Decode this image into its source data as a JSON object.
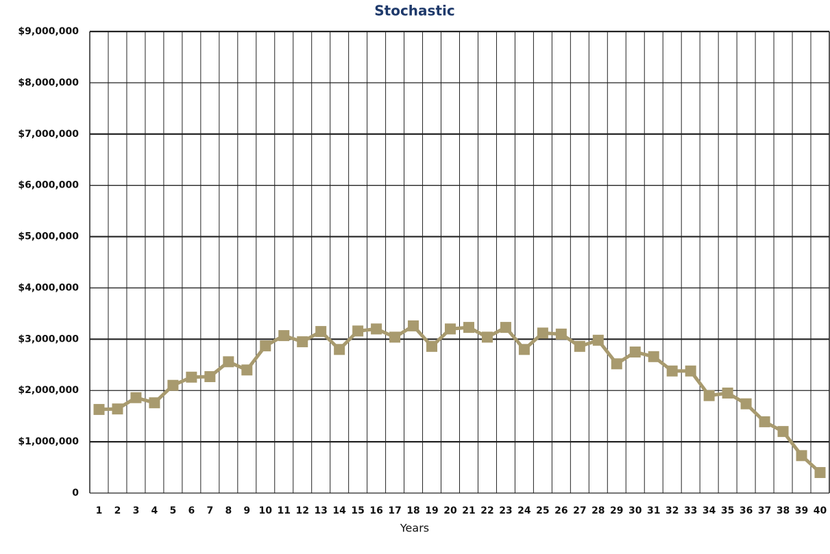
{
  "chart_data": {
    "type": "line",
    "title": "Stochastic",
    "x_label": "Years",
    "categories": [
      "1",
      "2",
      "3",
      "4",
      "5",
      "6",
      "7",
      "8",
      "9",
      "10",
      "11",
      "12",
      "13",
      "14",
      "15",
      "16",
      "17",
      "18",
      "19",
      "20",
      "21",
      "22",
      "23",
      "24",
      "25",
      "26",
      "27",
      "28",
      "29",
      "30",
      "31",
      "32",
      "33",
      "34",
      "35",
      "36",
      "37",
      "38",
      "39",
      "40"
    ],
    "series": [
      {
        "color": "#a89a6e",
        "values": [
          1630000,
          1640000,
          1860000,
          1760000,
          2100000,
          2260000,
          2270000,
          2560000,
          2400000,
          2870000,
          3070000,
          2950000,
          3150000,
          2800000,
          3160000,
          3200000,
          3040000,
          3260000,
          2860000,
          3200000,
          3230000,
          3040000,
          3230000,
          2800000,
          3120000,
          3100000,
          2860000,
          2980000,
          2520000,
          2750000,
          2660000,
          2380000,
          2380000,
          1900000,
          1950000,
          1740000,
          1390000,
          1200000,
          730000,
          400000
        ]
      }
    ],
    "ylim": [
      0,
      9000000
    ],
    "yticks": [
      {
        "value": 0,
        "label": "0"
      },
      {
        "value": 1000000,
        "label": "$1,000,000"
      },
      {
        "value": 2000000,
        "label": "$2,000,000"
      },
      {
        "value": 3000000,
        "label": "$3,000,000"
      },
      {
        "value": 4000000,
        "label": "$4,000,000"
      },
      {
        "value": 5000000,
        "label": "$5,000,000"
      },
      {
        "value": 6000000,
        "label": "$6,000,000"
      },
      {
        "value": 7000000,
        "label": "$7,000,000"
      },
      {
        "value": 8000000,
        "label": "$8,000,000"
      },
      {
        "value": 9000000,
        "label": "$9,000,000"
      }
    ],
    "grid": true
  }
}
